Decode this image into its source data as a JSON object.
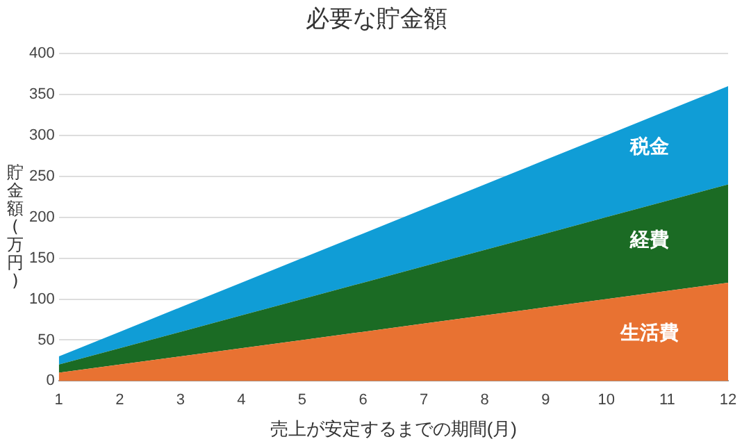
{
  "chart_data": {
    "type": "area",
    "title": "必要な貯金額",
    "xlabel": "売上が安定するまでの期間(月)",
    "ylabel": "貯金額(万円)",
    "stacked": true,
    "x": [
      1,
      2,
      3,
      4,
      5,
      6,
      7,
      8,
      9,
      10,
      11,
      12
    ],
    "series": [
      {
        "name": "生活費",
        "color": "#e87232",
        "values": [
          10,
          20,
          30,
          40,
          50,
          60,
          70,
          80,
          90,
          100,
          110,
          120
        ]
      },
      {
        "name": "経費",
        "color": "#1b6b24",
        "values": [
          10,
          20,
          30,
          40,
          50,
          60,
          70,
          80,
          90,
          100,
          110,
          120
        ]
      },
      {
        "name": "税金",
        "color": "#109dd6",
        "values": [
          10,
          20,
          30,
          40,
          50,
          60,
          70,
          80,
          90,
          100,
          110,
          120
        ]
      }
    ],
    "xlim": [
      1,
      12
    ],
    "xticks": [
      1,
      2,
      3,
      4,
      5,
      6,
      7,
      8,
      9,
      10,
      11,
      12
    ],
    "ylim": [
      0,
      400
    ],
    "yticks": [
      0,
      50,
      100,
      150,
      200,
      250,
      300,
      350,
      400
    ],
    "grid": "y",
    "legend": false
  }
}
